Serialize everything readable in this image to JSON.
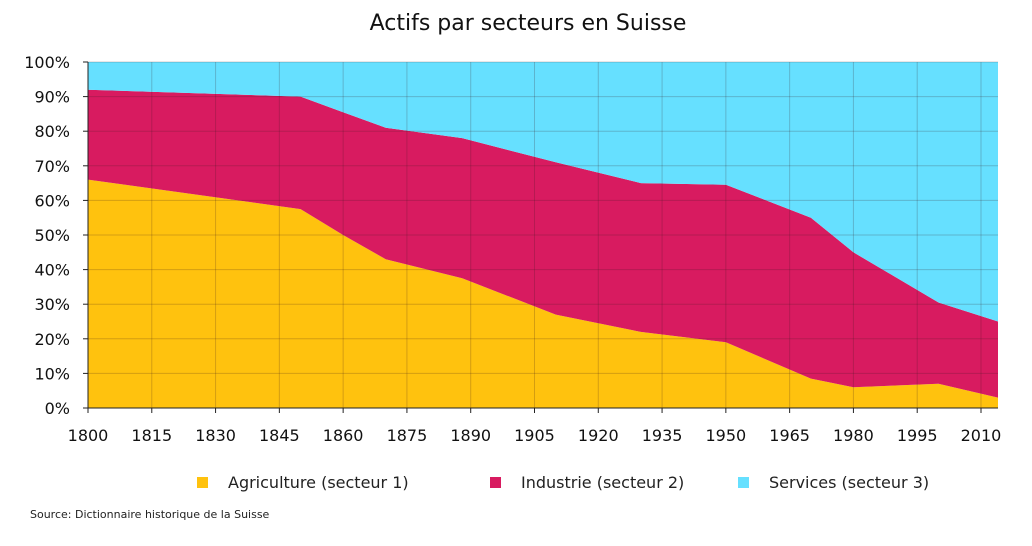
{
  "chart_data": {
    "type": "area",
    "stacked": true,
    "title": "Actifs par secteurs en Suisse",
    "x": [
      1800,
      1850,
      1860,
      1870,
      1888,
      1910,
      1930,
      1950,
      1970,
      1980,
      2000,
      2014
    ],
    "xticks": [
      1800,
      1815,
      1830,
      1845,
      1860,
      1875,
      1890,
      1905,
      1920,
      1935,
      1950,
      1965,
      1980,
      1995,
      2010
    ],
    "xtick_labels": [
      "1800",
      "1815",
      "1830",
      "1845",
      "1860",
      "1875",
      "1890",
      "1905",
      "1920",
      "1935",
      "1950",
      "1965",
      "1980",
      "1995",
      "2010"
    ],
    "xlim": [
      1800,
      2014
    ],
    "ylim": [
      0,
      100
    ],
    "yticks": [
      0,
      10,
      20,
      30,
      40,
      50,
      60,
      70,
      80,
      90,
      100
    ],
    "ytick_labels": [
      "0%",
      "10%",
      "20%",
      "30%",
      "40%",
      "50%",
      "60%",
      "70%",
      "80%",
      "90%",
      "100%"
    ],
    "grid": true,
    "legend_position": "bottom",
    "series": [
      {
        "name": "Agriculture (secteur 1)",
        "color": "#FFC20E",
        "values": [
          66,
          57.5,
          50,
          43,
          37.5,
          27,
          22,
          19,
          8.5,
          6,
          7,
          3
        ]
      },
      {
        "name": "Industrie (secteur 2)",
        "color": "#D81B60",
        "values": [
          26,
          32.5,
          35.5,
          38,
          40.5,
          44,
          43,
          45.5,
          46.5,
          39,
          23.5,
          22
        ]
      },
      {
        "name": "Services (secteur 3)",
        "color": "#66E0FF",
        "values": [
          8,
          10,
          14.5,
          19,
          22,
          29,
          35,
          35.5,
          45,
          55,
          69.5,
          75
        ]
      }
    ]
  },
  "source": "Source: Dictionnaire historique de la Suisse",
  "colors": {
    "grid": "#3a1a22",
    "axis": "#222222"
  }
}
